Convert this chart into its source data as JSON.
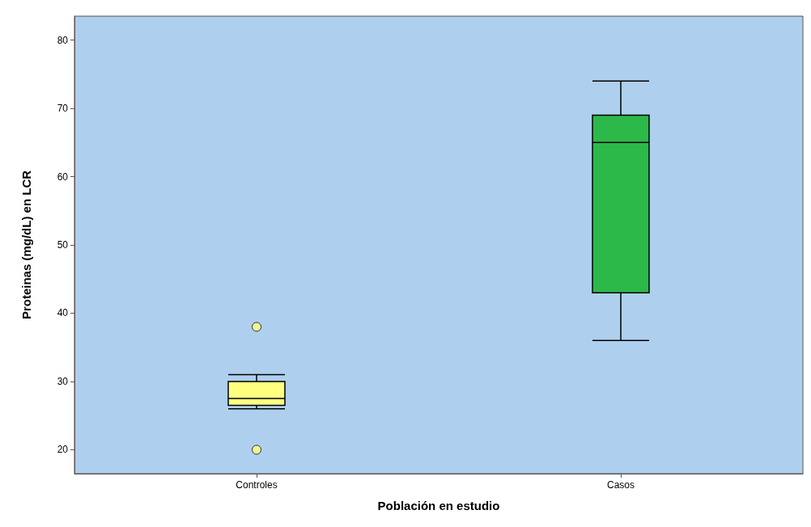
{
  "chart_data": {
    "type": "box",
    "xlabel": "Población en estudio",
    "ylabel": "Proteinas (mg/dL) en LCR",
    "categories": [
      "Controles",
      "Casos"
    ],
    "ylim": [
      16.5,
      83.5
    ],
    "yticks": [
      20,
      30,
      40,
      50,
      60,
      70,
      80
    ],
    "grid": false,
    "series": [
      {
        "colors": [
          "#ffff80",
          "#2db84a"
        ],
        "boxes": [
          {
            "low": 26,
            "q1": 26.5,
            "median": 27.5,
            "q3": 30,
            "high": 31
          },
          {
            "low": 36,
            "q1": 43,
            "median": 65,
            "q3": 69,
            "high": 74
          }
        ]
      },
      {
        "type": "scatter",
        "x": [
          "Controles",
          "Controles"
        ],
        "values": [
          38,
          20
        ],
        "color": "#ffff80",
        "marker": "circle"
      }
    ]
  }
}
